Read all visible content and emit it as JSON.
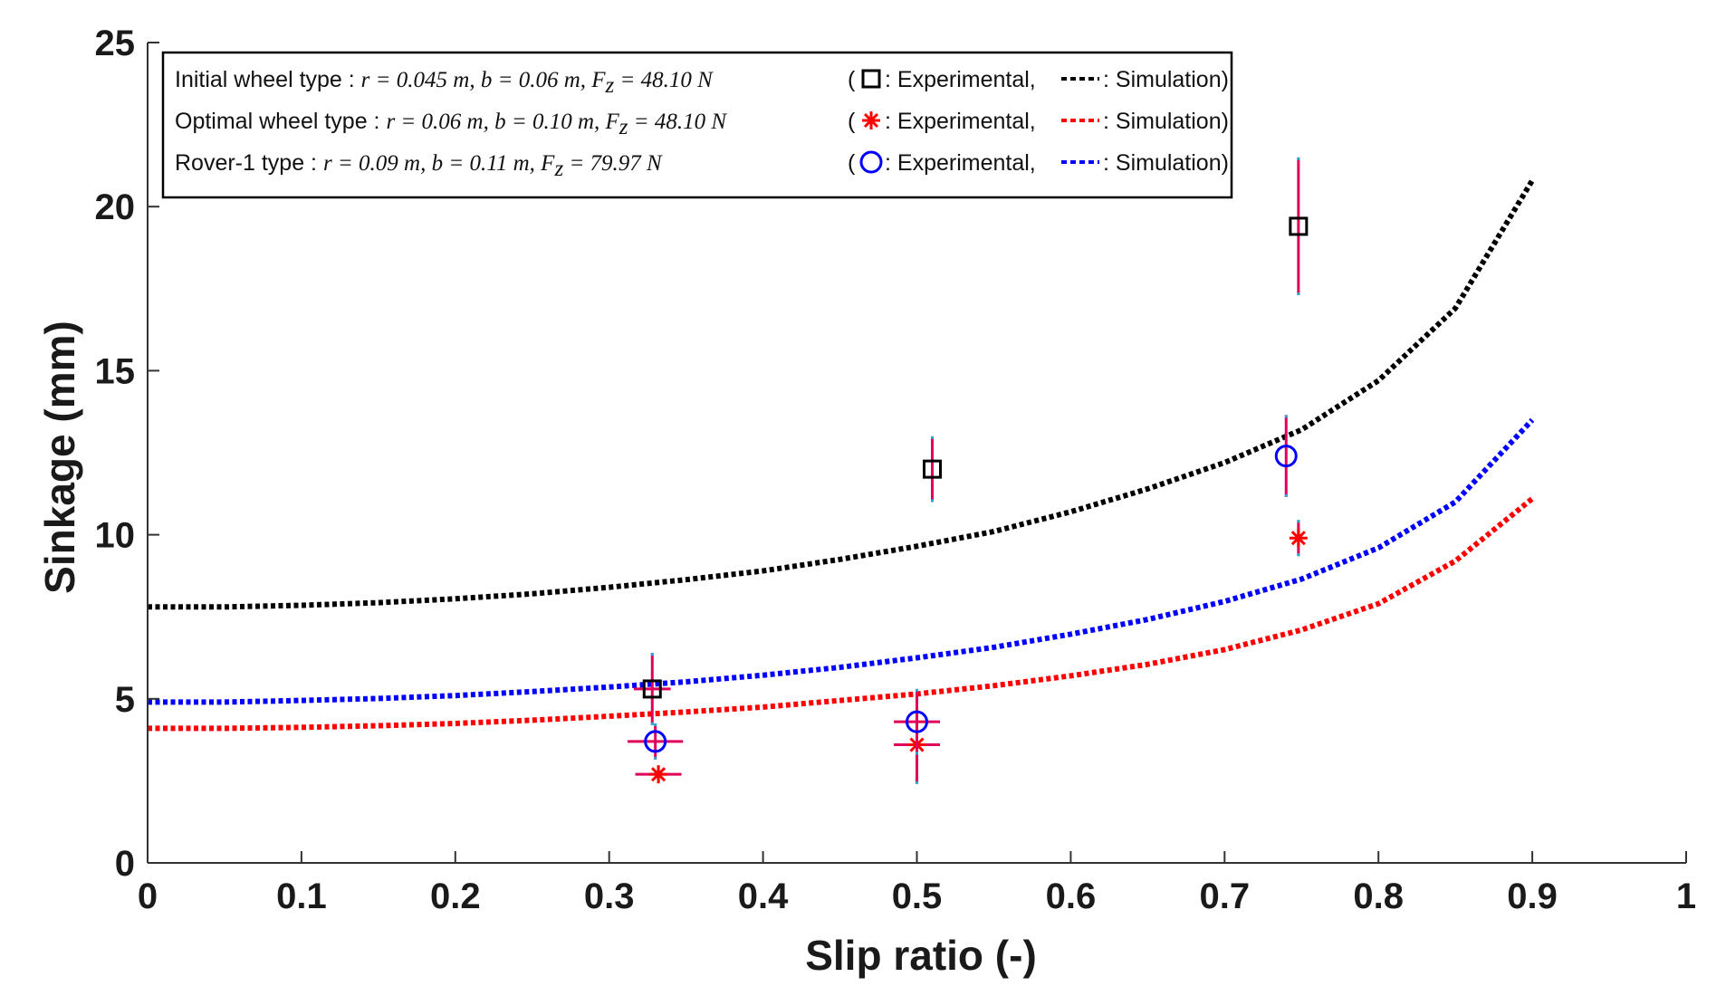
{
  "chart_data": {
    "type": "line",
    "xlabel": "Slip ratio (-)",
    "ylabel": "Sinkage (mm)",
    "xlim": [
      0,
      1
    ],
    "ylim": [
      0,
      25
    ],
    "xticks": [
      0,
      0.1,
      0.2,
      0.3,
      0.4,
      0.5,
      0.6,
      0.7,
      0.8,
      0.9,
      1
    ],
    "xtick_labels": [
      "0",
      "0.1",
      "0.2",
      "0.3",
      "0.4",
      "0.5",
      "0.6",
      "0.7",
      "0.8",
      "0.9",
      "1"
    ],
    "yticks": [
      0,
      5,
      10,
      15,
      20,
      25
    ],
    "ytick_labels": [
      "0",
      "5",
      "10",
      "15",
      "20",
      "25"
    ],
    "grid": false,
    "legend_position": "top-left",
    "series": [
      {
        "name": "Initial wheel type",
        "color": "#000000",
        "marker": "square",
        "legend_label": "Initial wheel type : ",
        "legend_params": "r = 0.045 m, b = 0.06 m, F",
        "legend_force": " = 48.10 N",
        "legend_marker_text": "(",
        "legend_exp_text": ": Experimental,",
        "legend_sim_text": ": Simulation)",
        "simulation": {
          "x": [
            0,
            0.05,
            0.1,
            0.15,
            0.2,
            0.25,
            0.3,
            0.35,
            0.4,
            0.45,
            0.5,
            0.55,
            0.6,
            0.65,
            0.7,
            0.75,
            0.8,
            0.85,
            0.9
          ],
          "y": [
            7.8,
            7.8,
            7.85,
            7.93,
            8.05,
            8.2,
            8.4,
            8.63,
            8.9,
            9.25,
            9.65,
            10.1,
            10.7,
            11.4,
            12.2,
            13.2,
            14.7,
            16.9,
            20.8
          ]
        },
        "experimental": [
          {
            "x": 0.328,
            "y": 5.3,
            "yerr": 1.1,
            "xerr": 0.012
          },
          {
            "x": 0.51,
            "y": 12.0,
            "yerr": 1.0,
            "xerr": 0.0
          },
          {
            "x": 0.748,
            "y": 19.4,
            "yerr": 2.1,
            "xerr": 0.0
          }
        ]
      },
      {
        "name": "Optimal wheel type",
        "color": "#ff0000",
        "marker": "asterisk",
        "legend_label": "Optimal wheel type : ",
        "legend_params": "r = 0.06 m, b = 0.10 m, F",
        "legend_force": " = 48.10 N",
        "legend_marker_text": "(",
        "legend_exp_text": ": Experimental,",
        "legend_sim_text": ": Simulation)",
        "simulation": {
          "x": [
            0,
            0.05,
            0.1,
            0.15,
            0.2,
            0.25,
            0.3,
            0.35,
            0.4,
            0.45,
            0.5,
            0.55,
            0.6,
            0.65,
            0.7,
            0.75,
            0.8,
            0.85,
            0.9
          ],
          "y": [
            4.1,
            4.1,
            4.13,
            4.18,
            4.25,
            4.35,
            4.47,
            4.6,
            4.75,
            4.95,
            5.15,
            5.4,
            5.7,
            6.05,
            6.5,
            7.1,
            7.9,
            9.2,
            11.1
          ]
        },
        "experimental": [
          {
            "x": 0.332,
            "y": 2.7,
            "yerr": 0.25,
            "xerr": 0.015
          },
          {
            "x": 0.5,
            "y": 3.6,
            "yerr": 1.2,
            "xerr": 0.015
          },
          {
            "x": 0.748,
            "y": 9.9,
            "yerr": 0.55,
            "xerr": 0.0
          }
        ]
      },
      {
        "name": "Rover-1 type",
        "color": "#0000ff",
        "marker": "circle",
        "legend_label": "Rover-1 type : ",
        "legend_params": "r = 0.09 m, b = 0.11 m, F",
        "legend_force": " = 79.97 N",
        "legend_marker_text": "(",
        "legend_exp_text": ": Experimental,",
        "legend_sim_text": ": Simulation)",
        "simulation": {
          "x": [
            0,
            0.05,
            0.1,
            0.15,
            0.2,
            0.25,
            0.3,
            0.35,
            0.4,
            0.45,
            0.5,
            0.55,
            0.6,
            0.65,
            0.7,
            0.75,
            0.8,
            0.85,
            0.9
          ],
          "y": [
            4.9,
            4.9,
            4.95,
            5.01,
            5.1,
            5.22,
            5.36,
            5.52,
            5.72,
            5.96,
            6.25,
            6.57,
            6.97,
            7.42,
            7.97,
            8.65,
            9.6,
            11.0,
            13.5
          ]
        },
        "experimental": [
          {
            "x": 0.33,
            "y": 3.7,
            "yerr": 0.55,
            "xerr": 0.018
          },
          {
            "x": 0.5,
            "y": 4.3,
            "yerr": 1.0,
            "xerr": 0.015
          },
          {
            "x": 0.74,
            "y": 12.4,
            "yerr": 1.25,
            "xerr": 0.0
          }
        ]
      }
    ],
    "errorbar_color": "#e0005a",
    "errorcap_color": "#22aadd"
  }
}
